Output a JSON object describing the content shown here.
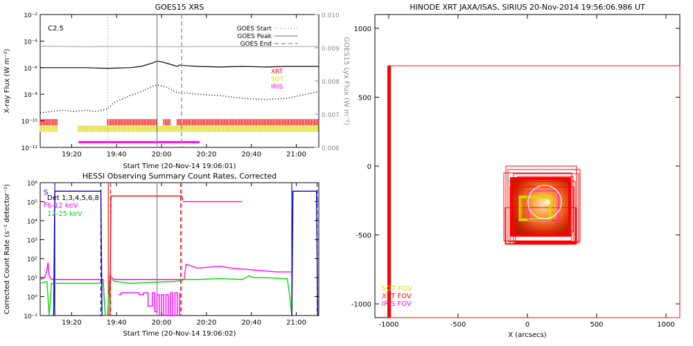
{
  "chart_data": [
    {
      "type": "line",
      "title": "GOES15 XRS",
      "xlabel": "Start Time (20-Nov-14 19:06:01)",
      "ylabel": "X-ray Flux (W m⁻²)",
      "y2label": "GOES15 Lyx Flux (W m⁻²)",
      "xticks": [
        "19:20",
        "19:40",
        "20:00",
        "20:20",
        "20:40",
        "21:00"
      ],
      "xticks_min": [
        14,
        34,
        54,
        74,
        94,
        114
      ],
      "xlim_min": [
        0,
        124
      ],
      "yticks": [
        "10⁻²",
        "10⁻⁴",
        "10⁻⁶",
        "10⁻⁸",
        "10⁻¹⁰",
        "10⁻¹²"
      ],
      "ylim_log": [
        -12,
        -2
      ],
      "y2ticks": [
        "0.010",
        "0.009",
        "0.008",
        "0.007",
        "0.006"
      ],
      "y2lim": [
        0.006,
        0.01
      ],
      "annotation": "C2.5",
      "legend": [
        {
          "label": "GOES Start",
          "style": "dotted"
        },
        {
          "label": "GOES Peak",
          "style": "solid"
        },
        {
          "label": "GOES End",
          "style": "dashed"
        }
      ],
      "instruments": [
        {
          "label": "XRT",
          "color": "#ff0000"
        },
        {
          "label": "SOT",
          "color": "#d8d800"
        },
        {
          "label": "IRIS",
          "color": "#ff00ff"
        }
      ],
      "events_min": {
        "start": 30,
        "peak": 52,
        "end": 63
      },
      "series": [
        {
          "name": "",
          "color": "#000000",
          "style": "solid",
          "x": [
            0,
            10,
            20,
            30,
            40,
            45,
            50,
            52,
            55,
            58,
            61,
            62,
            65,
            70,
            80,
            90,
            100,
            110,
            124
          ],
          "log_y": [
            -6.0,
            -6.0,
            -6.0,
            -6.05,
            -6.0,
            -5.9,
            -5.65,
            -5.5,
            -5.6,
            -5.75,
            -5.9,
            -5.8,
            -5.85,
            -5.9,
            -5.95,
            -5.9,
            -5.95,
            -5.9,
            -5.9
          ]
        },
        {
          "name": "",
          "color": "#000000",
          "style": "dotted",
          "x": [
            0,
            5,
            10,
            15,
            20,
            25,
            30,
            33,
            36,
            40,
            45,
            50,
            52,
            55,
            58,
            61,
            65,
            70,
            80,
            90,
            100,
            110,
            124
          ],
          "log_y": [
            -9.4,
            -9.3,
            -9.2,
            -9.3,
            -9.2,
            -9.3,
            -9.1,
            -8.6,
            -8.4,
            -8.1,
            -7.8,
            -7.4,
            -7.3,
            -7.4,
            -7.6,
            -7.9,
            -7.9,
            -8.0,
            -8.1,
            -8.3,
            -8.4,
            -8.3,
            -7.8
          ]
        },
        {
          "name": "",
          "color": "#aaaaaa",
          "style": "solid",
          "x": [
            0,
            20,
            40,
            60,
            80,
            100,
            124
          ],
          "y2": [
            0.00905,
            0.00903,
            0.00904,
            0.00903,
            0.00904,
            0.00903,
            0.00904
          ]
        }
      ],
      "coverage": [
        {
          "instrument": "XRT",
          "color": "#ff0000",
          "log_y": -10.1,
          "intervals_min": [
            [
              0,
              8
            ],
            [
              30,
              52
            ],
            [
              55,
              58
            ],
            [
              61,
              124
            ]
          ]
        },
        {
          "instrument": "SOT",
          "color": "#d8d800",
          "log_y": -10.6,
          "intervals_min": [
            [
              0,
              8
            ],
            [
              17,
              70
            ],
            [
              70,
              124
            ]
          ]
        },
        {
          "instrument": "IRIS",
          "color": "#ff00ff",
          "log_y": -11.6,
          "intervals_min": [
            [
              17,
              71
            ]
          ]
        }
      ]
    },
    {
      "type": "line",
      "title": "HESSI Observing Summary Count Rates, Corrected",
      "xlabel": "Start Time (20-Nov-14 19:06:02)",
      "ylabel": "Corrected Count Rate (s⁻¹ detector⁻¹)",
      "xticks": [
        "19:20",
        "19:40",
        "20:00",
        "20:20",
        "20:40",
        "21:00"
      ],
      "xticks_min": [
        14,
        34,
        54,
        74,
        94,
        114
      ],
      "xlim_min": [
        0,
        124
      ],
      "yticks": [
        "10⁶",
        "10⁵",
        "10⁴",
        "10³",
        "10²",
        "10¹",
        "10⁰",
        "10⁻¹"
      ],
      "ylim_log": [
        -1,
        6
      ],
      "legend_labels": [
        "S",
        "F",
        "Det 1,3,4,5,6,8",
        "6-12 keV",
        "12-25 keV"
      ],
      "events_min": {
        "peak": 52,
        "end": 63
      },
      "series": [
        {
          "name": "6-12 keV",
          "color": "#ff00ff",
          "x": [
            0,
            2,
            3,
            3.5,
            4,
            5,
            8,
            15,
            20,
            28,
            29,
            30,
            31,
            33,
            40,
            50,
            60,
            64,
            65,
            70,
            75,
            80,
            85,
            90,
            95,
            100,
            105,
            110,
            112
          ],
          "log_y": [
            0.9,
            1.0,
            1.4,
            1.8,
            1.1,
            0.9,
            0.9,
            0.9,
            0.9,
            0.9,
            -1.0,
            -1.0,
            1.1,
            0.9,
            0.9,
            0.9,
            0.9,
            0.9,
            1.7,
            1.5,
            1.55,
            1.6,
            1.5,
            1.45,
            1.4,
            1.35,
            1.3,
            1.3,
            1.3
          ]
        },
        {
          "name": "12-25 keV",
          "color": "#00dd00",
          "x": [
            0,
            3,
            4,
            5,
            8,
            28,
            29,
            30,
            31,
            33,
            40,
            50,
            60,
            63,
            64,
            70,
            80,
            90,
            93,
            95,
            100,
            108,
            110,
            111,
            112
          ],
          "log_y": [
            0.7,
            0.8,
            -1.0,
            0.7,
            0.7,
            0.7,
            -1.0,
            -1.0,
            1.0,
            0.8,
            0.7,
            0.75,
            0.8,
            0.85,
            0.9,
            0.9,
            0.95,
            0.9,
            1.1,
            1.0,
            1.0,
            0.95,
            0.95,
            0.1,
            -1.0
          ]
        },
        {
          "name": "",
          "color": "#0000bb",
          "x": [
            6,
            6.5,
            27,
            27.5
          ],
          "log_y": [
            -1.0,
            5.55,
            5.55,
            -1.0
          ]
        },
        {
          "name": "",
          "color": "#0000bb",
          "x": [
            112,
            112.5,
            123,
            123.5
          ],
          "log_y": [
            -1.0,
            5.55,
            5.55,
            -1.0
          ]
        },
        {
          "name": "",
          "color": "#ff0000",
          "x": [
            31,
            31.5,
            63,
            63.5
          ],
          "log_y": [
            -1.0,
            5.3,
            5.3,
            5.1
          ]
        },
        {
          "name": "",
          "color": "#ff00ff",
          "x": [
            63.5,
            90
          ],
          "log_y": [
            5.0,
            5.0
          ]
        },
        {
          "name": "",
          "color": "#ff00ff",
          "style": "steps",
          "x": [
            35,
            36,
            40,
            44,
            46,
            48,
            50,
            51,
            52,
            53,
            54,
            55,
            56,
            57,
            58,
            59,
            60,
            61,
            62
          ],
          "log_y": [
            0.1,
            0.2,
            0.2,
            0.1,
            0.2,
            -0.5,
            0.2,
            -0.8,
            0.1,
            -1.0,
            0.1,
            -1.0,
            0.1,
            -1.0,
            0.2,
            -1.0,
            0.2,
            -1.0,
            0.2
          ]
        }
      ],
      "verticals": [
        {
          "min": 6.5,
          "color": "#0000bb",
          "style": "solid"
        },
        {
          "min": 27,
          "color": "#0000bb",
          "style": "dashed"
        },
        {
          "min": 30.3,
          "color": "#ff0000",
          "style": "solid"
        },
        {
          "min": 31.3,
          "color": "#ff0000",
          "style": "dashed"
        },
        {
          "min": 62.5,
          "color": "#ff0000",
          "style": "dashed"
        },
        {
          "min": 112,
          "color": "#0000bb",
          "style": "solid"
        },
        {
          "min": 123.3,
          "color": "#0000bb",
          "style": "dashed"
        }
      ]
    },
    {
      "type": "scatter",
      "title": "HINODE XRT JAXA/ISAS, SIRIUS 20-Nov-2014 19:56:06.986 UT",
      "xlabel": "X (arcsecs)",
      "ylabel": "",
      "xticks": [
        -1000,
        -500,
        0,
        500,
        1000
      ],
      "yticks": [
        1000,
        500,
        0,
        -500,
        -1000
      ],
      "xlim": [
        -1100,
        1100
      ],
      "ylim": [
        -1100,
        1100
      ],
      "legend": [
        {
          "label": "SOT FOV",
          "color": "#d8d800"
        },
        {
          "label": "XRT FOV",
          "color": "#ff0000"
        },
        {
          "label": "IRIS FOV",
          "color": "#ff00ff"
        }
      ]
    }
  ]
}
